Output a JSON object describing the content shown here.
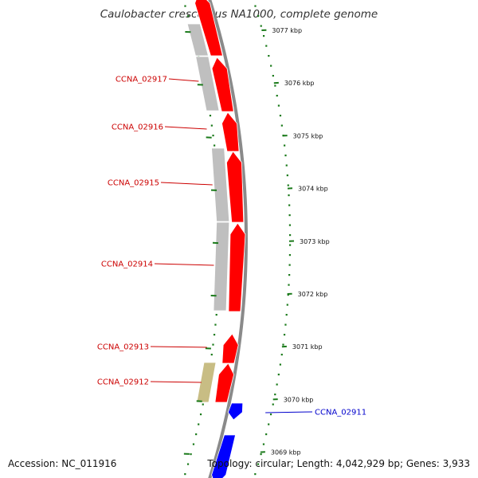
{
  "title": "Caulobacter crescentus NA1000, complete genome",
  "footer": {
    "accession": "Accession: NC_011916",
    "stats": "Topology: circular; Length: 4,042,929 bp; Genes: 3,933"
  },
  "colors": {
    "forward_cds": "#ff0000",
    "reverse_cds": "#0000ff",
    "forward_label": "#cc0000",
    "reverse_label": "#0000cc",
    "rna_feature": "#c8bd84",
    "other_feature": "#bfbfbf",
    "backbone": "#8a8a8a",
    "scale_ticks": "#1a7a1a"
  },
  "scale_ticks": [
    {
      "kbp": 3077,
      "label": "3077 kbp"
    },
    {
      "kbp": 3076,
      "label": "3076 kbp"
    },
    {
      "kbp": 3075,
      "label": "3075 kbp"
    },
    {
      "kbp": 3074,
      "label": "3074 kbp"
    },
    {
      "kbp": 3073,
      "label": "3073 kbp"
    },
    {
      "kbp": 3072,
      "label": "3072 kbp"
    },
    {
      "kbp": 3071,
      "label": "3071 kbp"
    },
    {
      "kbp": 3070,
      "label": "3070 kbp"
    },
    {
      "kbp": 3069,
      "label": "3069 kbp"
    }
  ],
  "genes": [
    {
      "name": "CCNA_02917",
      "strand": "forward"
    },
    {
      "name": "CCNA_02916",
      "strand": "forward"
    },
    {
      "name": "CCNA_02915",
      "strand": "forward"
    },
    {
      "name": "CCNA_02914",
      "strand": "forward"
    },
    {
      "name": "CCNA_02913",
      "strand": "forward"
    },
    {
      "name": "CCNA_02912",
      "strand": "forward"
    },
    {
      "name": "CCNA_02911",
      "strand": "reverse"
    }
  ]
}
